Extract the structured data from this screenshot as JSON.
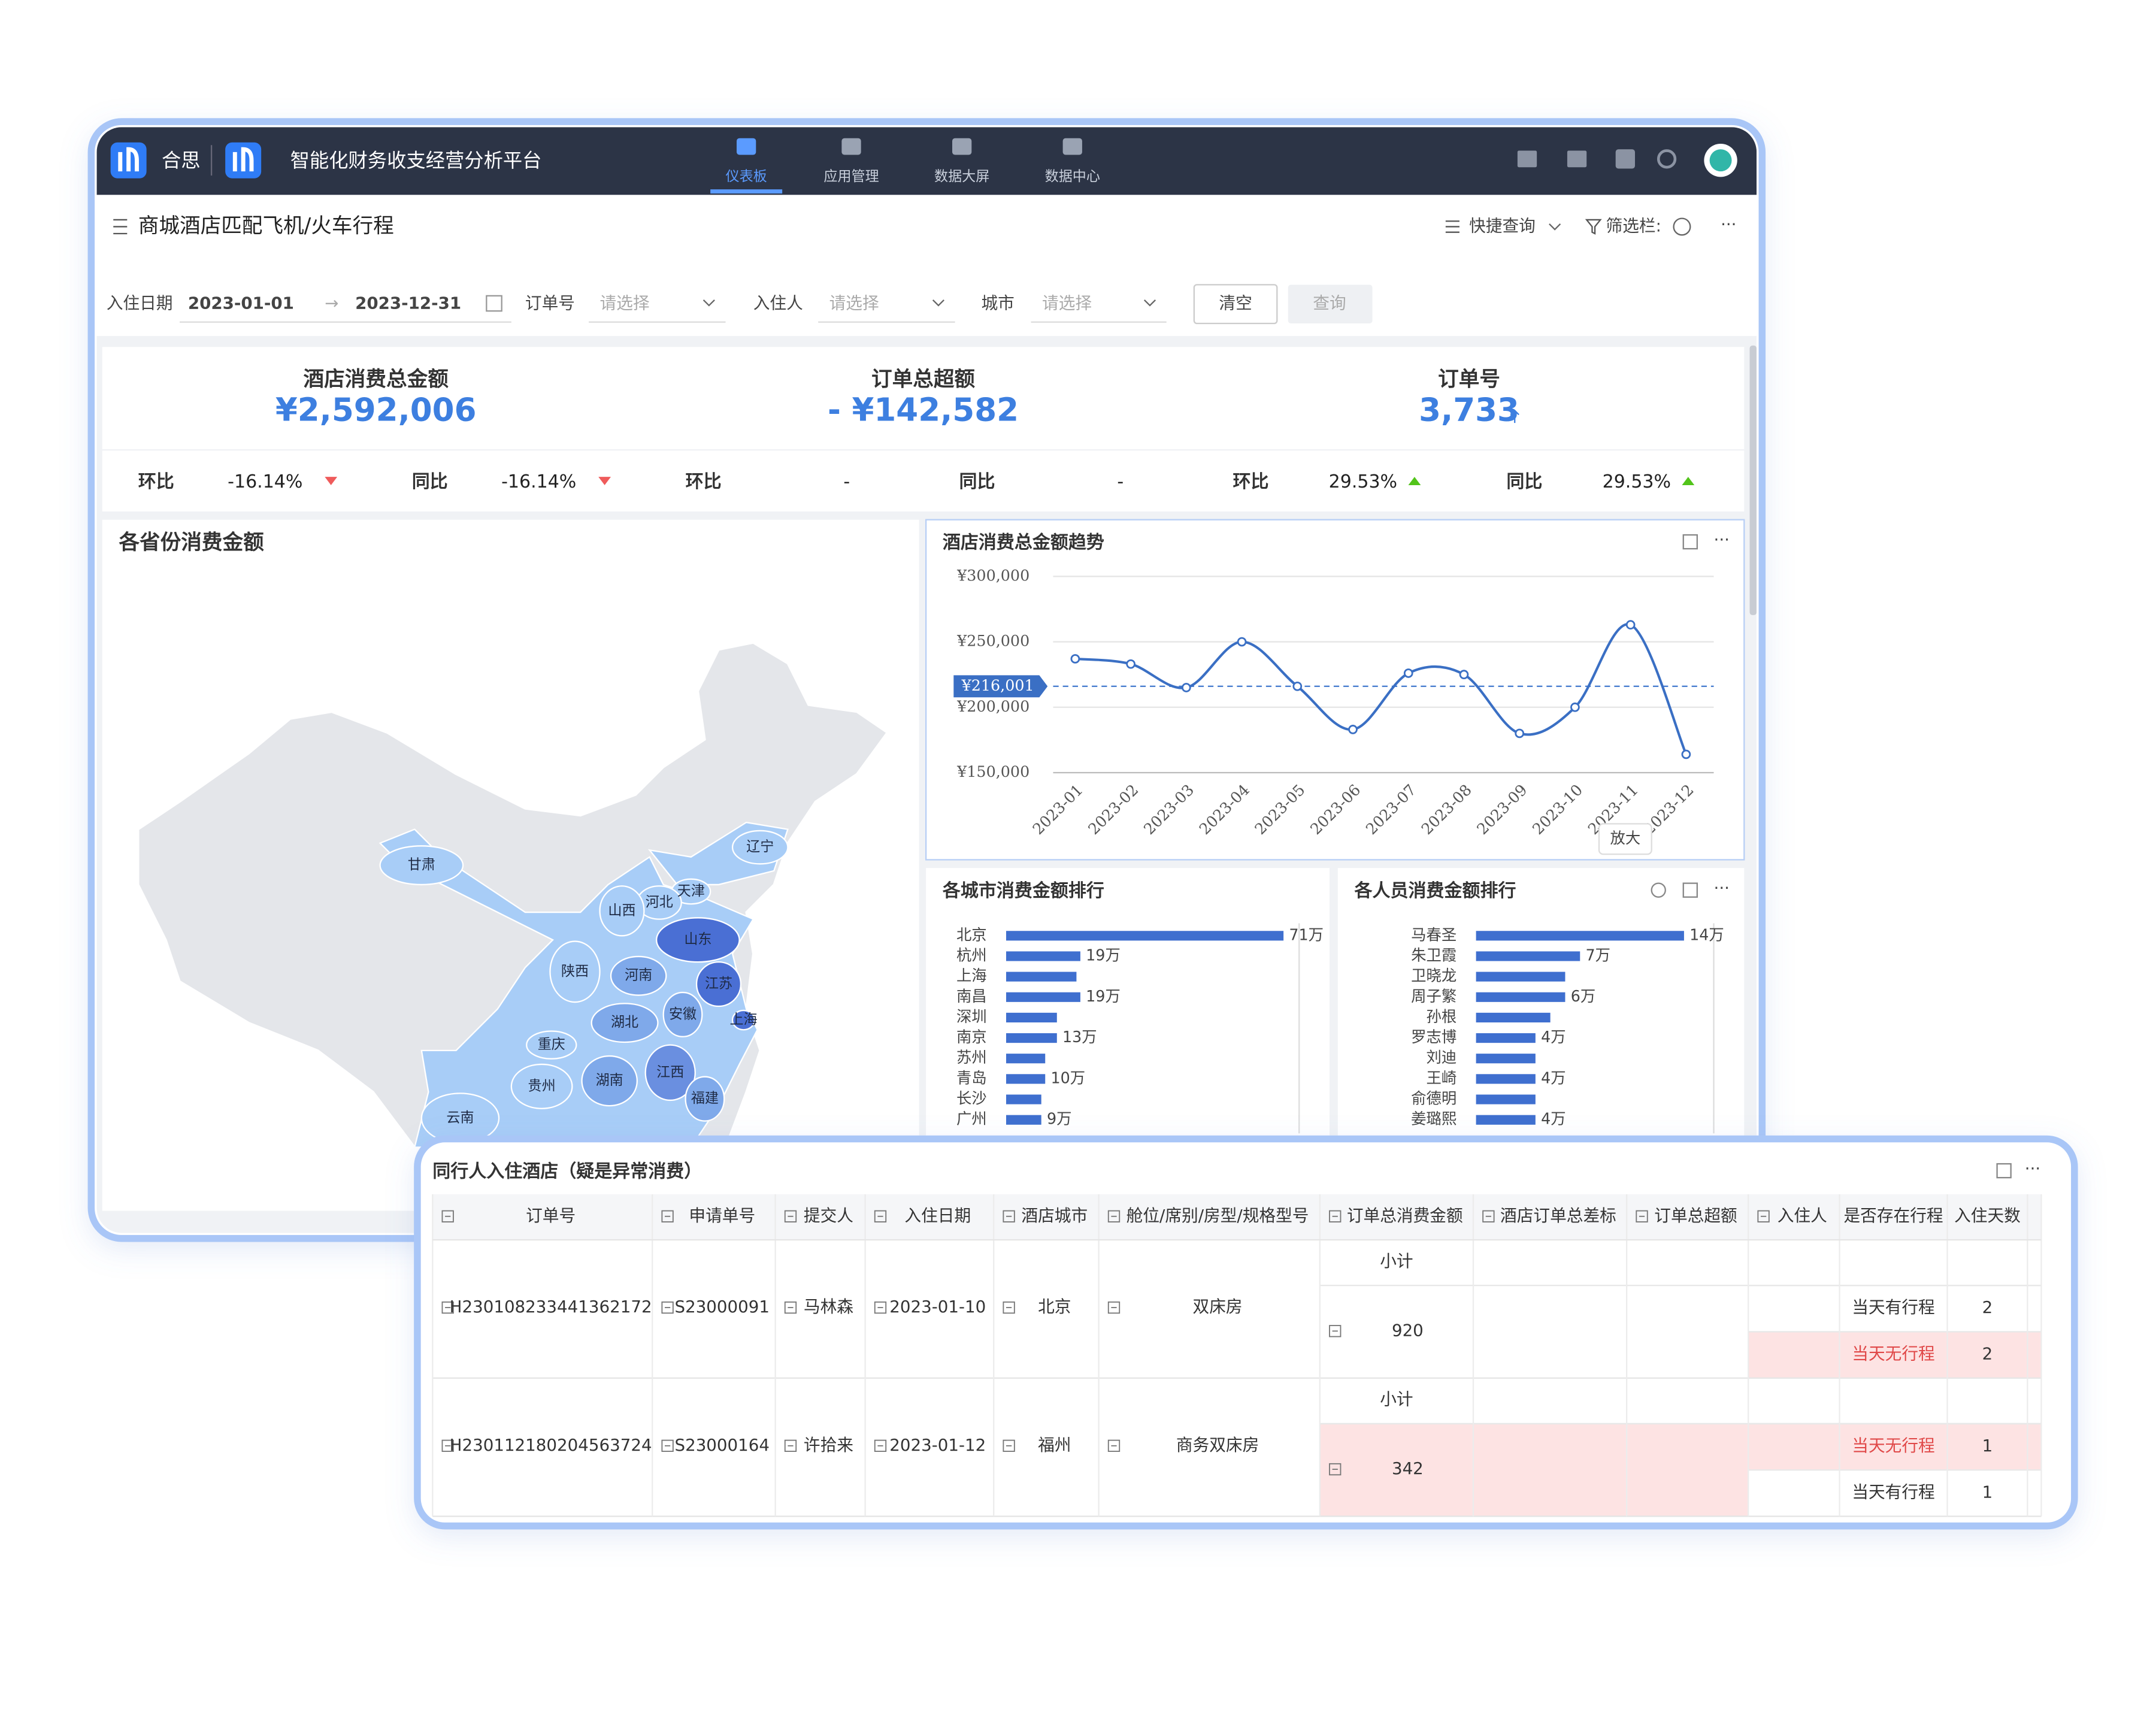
{
  "app": {
    "brand": "合思",
    "title": "智能化财务收支经营分析平台",
    "nav": [
      "仪表板",
      "应用管理",
      "数据大屏",
      "数据中心"
    ]
  },
  "page": {
    "title": "商城酒店匹配飞机/火车行程",
    "quick_query": "快捷查询",
    "filter_bar": "筛选栏:"
  },
  "filters": {
    "date_label": "入住日期",
    "date_start": "2023-01-01",
    "date_end": "2023-12-31",
    "selects": [
      {
        "label": "订单号",
        "placeholder": "请选择"
      },
      {
        "label": "入住人",
        "placeholder": "请选择"
      },
      {
        "label": "城市",
        "placeholder": "请选择"
      }
    ],
    "clear": "清空",
    "query": "查询"
  },
  "kpis": [
    {
      "title": "酒店消费总金额",
      "value": "¥2,592,006",
      "compare": [
        {
          "label": "环比",
          "value": "-16.14%",
          "trend": "down"
        },
        {
          "label": "同比",
          "value": "-16.14%",
          "trend": "down"
        }
      ]
    },
    {
      "title": "订单总超额",
      "value": "- ¥142,582",
      "compare": [
        {
          "label": "环比",
          "value": "-"
        },
        {
          "label": "同比",
          "value": "-"
        }
      ]
    },
    {
      "title": "订单号",
      "value": "3,733",
      "compare": [
        {
          "label": "环比",
          "value": "29.53%",
          "trend": "up"
        },
        {
          "label": "同比",
          "value": "29.53%",
          "trend": "up"
        }
      ]
    }
  ],
  "map": {
    "title": "各省份消费金额",
    "provinces": [
      "甘肃",
      "辽宁",
      "天津",
      "河北",
      "山西",
      "山东",
      "陕西",
      "河南",
      "江苏",
      "上海",
      "湖北",
      "安徽",
      "重庆",
      "贵州",
      "湖南",
      "江西",
      "福建",
      "云南"
    ]
  },
  "chart_data": [
    {
      "type": "line",
      "title": "酒店消费总金额趋势",
      "categories": [
        "2023-01",
        "2023-02",
        "2023-03",
        "2023-04",
        "2023-05",
        "2023-06",
        "2023-07",
        "2023-08",
        "2023-09",
        "2023-10",
        "2023-11",
        "2023-12"
      ],
      "values": [
        237000,
        233000,
        215000,
        250000,
        216000,
        183000,
        226000,
        225000,
        180000,
        200000,
        263000,
        164000
      ],
      "color": "#3a6fc4",
      "ylim": [
        150000,
        300000
      ],
      "yticks": [
        {
          "value": 150000,
          "label": "¥150,000"
        },
        {
          "value": 200000,
          "label": "¥200,000"
        },
        {
          "value": 250000,
          "label": "¥250,000"
        },
        {
          "value": 300000,
          "label": "¥300,000"
        }
      ],
      "grid": true,
      "reference_line": {
        "value": 216001,
        "label": "¥216,001"
      },
      "zoom_tooltip": "放大"
    },
    {
      "type": "bar",
      "orientation": "horizontal",
      "title": "各城市消费金额排行",
      "categories": [
        "北京",
        "杭州",
        "上海",
        "南昌",
        "深圳",
        "南京",
        "苏州",
        "青岛",
        "长沙",
        "广州"
      ],
      "values": [
        71,
        19,
        18,
        19,
        13,
        13,
        10,
        10,
        9,
        9
      ],
      "value_labels": [
        "71万",
        "19万",
        null,
        "19万",
        null,
        "13万",
        null,
        "10万",
        null,
        "9万"
      ],
      "color": "#3f6fcf",
      "xlim": [
        0,
        75
      ]
    },
    {
      "type": "bar",
      "orientation": "horizontal",
      "title": "各人员消费金额排行",
      "categories": [
        "马春圣",
        "朱卫霞",
        "卫晓龙",
        "周子繁",
        "孙根",
        "罗志博",
        "刘迪",
        "王崎",
        "俞德明",
        "姜璐熙"
      ],
      "values": [
        14,
        7,
        6,
        6,
        5,
        4,
        4,
        4,
        4,
        4
      ],
      "value_labels": [
        "14万",
        "7万",
        null,
        "6万",
        null,
        "4万",
        null,
        "4万",
        null,
        "4万"
      ],
      "color": "#3f6fcf",
      "xlim": [
        0,
        16
      ]
    }
  ],
  "table": {
    "title": "同行人入住酒店（疑是异常消费）",
    "columns": [
      "订单号",
      "申请单号",
      "提交人",
      "入住日期",
      "酒店城市",
      "舱位/席别/房型/规格型号",
      "订单总消费金额",
      "酒店订单总差标",
      "订单总超额",
      "入住人",
      "是否存在行程",
      "入住天数"
    ],
    "groups": [
      {
        "order_no": "H230108233441362172",
        "apply_no": "S23000091",
        "submitter": "马林森",
        "checkin_date": "2023-01-10",
        "city": "北京",
        "room_type": "双床房",
        "subtotal": "小计",
        "amount": 920,
        "highlight": false,
        "rows": [
          {
            "trip": "当天有行程",
            "days": 2,
            "highlight": false
          },
          {
            "trip": "当天无行程",
            "days": 2,
            "highlight": true
          }
        ]
      },
      {
        "order_no": "H230112180204563724",
        "apply_no": "S23000164",
        "submitter": "许拾来",
        "checkin_date": "2023-01-12",
        "city": "福州",
        "room_type": "商务双床房",
        "subtotal": "小计",
        "amount": 342,
        "highlight": true,
        "rows": [
          {
            "trip": "当天无行程",
            "days": 1,
            "highlight": true
          },
          {
            "trip": "当天有行程",
            "days": 1,
            "highlight": false
          }
        ]
      }
    ]
  }
}
